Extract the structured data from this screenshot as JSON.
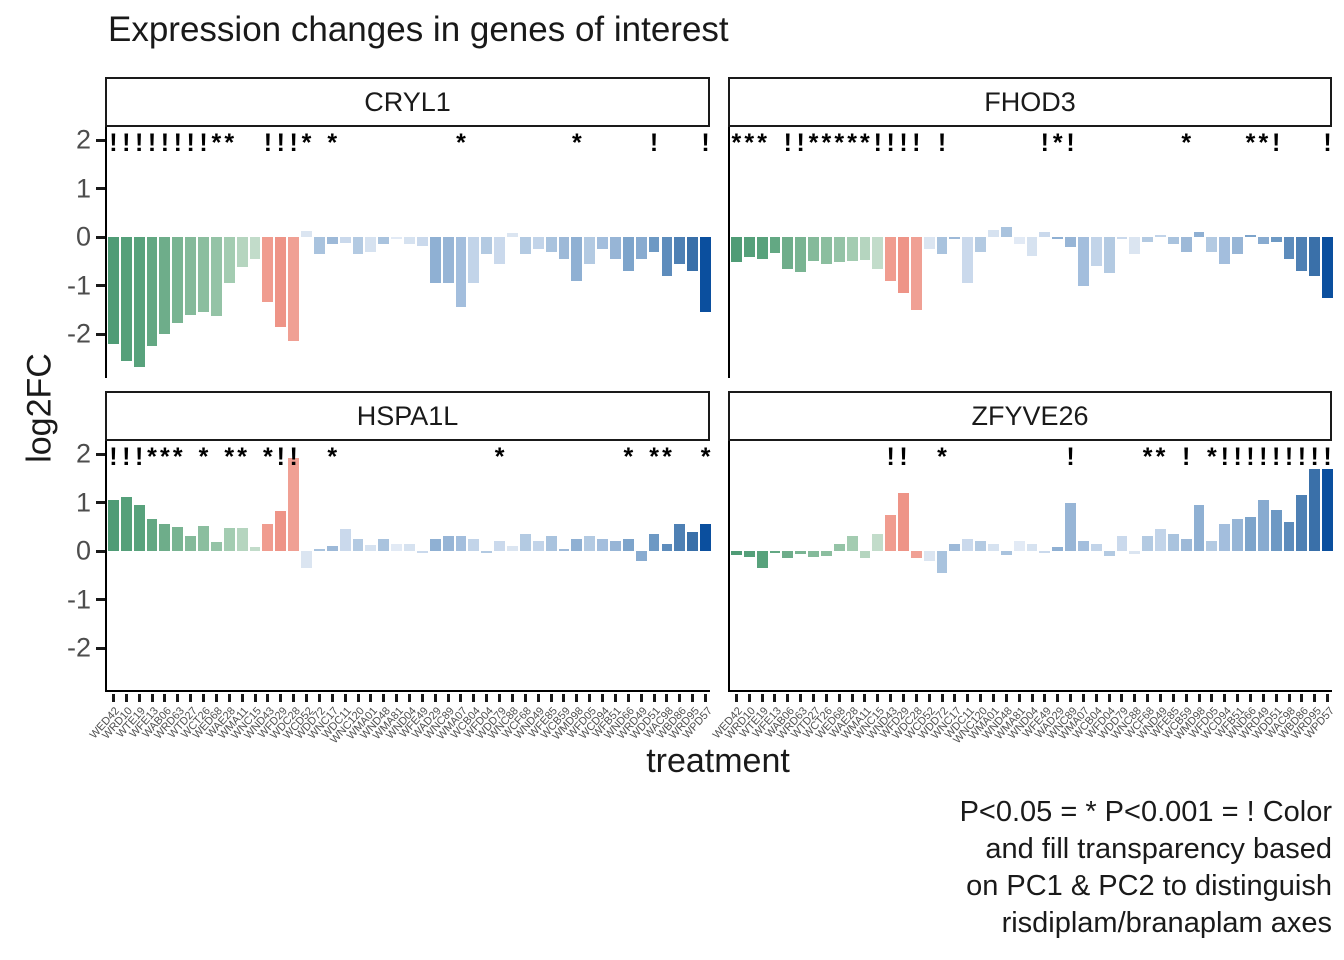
{
  "title": "Expression changes in genes of interest",
  "axes": {
    "ylabel": "log2FC",
    "xlabel": "treatment",
    "y_ticks": [
      2,
      1,
      0,
      -1,
      -2
    ]
  },
  "caption": {
    "lines": [
      "P<0.05 = * P<0.001 = ! Color",
      "and fill transparency based",
      "on PC1 & PC2 to distinguish",
      "risdiplam/branaplam axes"
    ]
  },
  "treatments": [
    "WED42",
    "WRD10",
    "WTE19",
    "WFE13",
    "WAB06",
    "WRD63",
    "WTD27",
    "WCT26",
    "WED68",
    "WAE28",
    "WMA11",
    "WNC15",
    "WND43",
    "WFD29",
    "WDC28",
    "WCD52",
    "WDD72",
    "WNC17",
    "WDC11",
    "WNC120",
    "WMA01",
    "WND48",
    "WMA81",
    "WND04",
    "WFE49",
    "WAD29",
    "WNC89",
    "WMA07",
    "WCB04",
    "WFD04",
    "WDD79",
    "WNC88",
    "WCF68",
    "WND49",
    "WFE85",
    "WCB59",
    "WMD98",
    "WFD05",
    "WCD94",
    "WFB51",
    "WND66",
    "WRD49",
    "WDD51",
    "WAC98",
    "WBD86",
    "WRD95",
    "WPD57"
  ],
  "bar_colors": [
    "#4f9c76",
    "#55a07a",
    "#58a27c",
    "#63a883",
    "#6ead8a",
    "#79b492",
    "#84ba9a",
    "#8bbe9f",
    "#94c3a6",
    "#a3ccb1",
    "#b5d5bf",
    "#c2dcca",
    "#f09c8f",
    "#ee9487",
    "#f0a094",
    "#dbe5f1",
    "#a9c3de",
    "#9db9d8",
    "#cad9ec",
    "#b3cae2",
    "#d6e2f0",
    "#a9c3de",
    "#e2eaf5",
    "#d6e2f0",
    "#cad9ec",
    "#8fb0d3",
    "#97b5d6",
    "#a3bedd",
    "#c2d4e9",
    "#b3cae2",
    "#cad9ec",
    "#dbe5f1",
    "#b3cae2",
    "#c2d4e9",
    "#a9c3de",
    "#9db9d8",
    "#8fb0d3",
    "#b3cae2",
    "#a3bedd",
    "#97b5d6",
    "#7da4cb",
    "#88abd0",
    "#6d99c4",
    "#5d8cbc",
    "#4e80b4",
    "#3a70a9",
    "#0b4f9e"
  ],
  "chart_data": {
    "type": "bar",
    "title": "Expression changes in genes of interest",
    "xlabel": "treatment",
    "ylabel": "log2FC",
    "ylim": [
      -2.9,
      2.3
    ],
    "grid": false,
    "legend_position": "none",
    "sig_legend": {
      "*": "P<0.05",
      "!": "P<0.001"
    },
    "facets": [
      {
        "gene": "CRYL1",
        "values": [
          -2.2,
          -2.55,
          -2.68,
          -2.25,
          -2.0,
          -1.77,
          -1.6,
          -1.55,
          -1.62,
          -0.95,
          -0.62,
          -0.45,
          -1.35,
          -1.85,
          -2.15,
          0.12,
          -0.35,
          -0.15,
          -0.12,
          -0.35,
          -0.3,
          -0.15,
          -0.05,
          -0.15,
          -0.18,
          -0.95,
          -0.95,
          -1.45,
          -0.95,
          -0.35,
          -0.55,
          0.08,
          -0.35,
          -0.25,
          -0.3,
          -0.45,
          -0.9,
          -0.55,
          -0.25,
          -0.45,
          -0.7,
          -0.45,
          -0.3,
          -0.8,
          -0.55,
          -0.7,
          -1.55
        ],
        "sig": [
          "!",
          "!",
          "!",
          "!",
          "!",
          "!",
          "!",
          "!",
          "*",
          "*",
          "",
          "",
          "!",
          "!",
          "!",
          "*",
          "",
          "*",
          "",
          "",
          "",
          "",
          "",
          "",
          "",
          "",
          "",
          "*",
          "",
          "",
          "",
          "",
          "",
          "",
          "",
          "",
          "*",
          "",
          "",
          "",
          "",
          "",
          "!",
          "",
          "",
          "",
          "!"
        ]
      },
      {
        "gene": "FHOD3",
        "values": [
          -0.52,
          -0.42,
          -0.45,
          -0.33,
          -0.65,
          -0.72,
          -0.5,
          -0.55,
          -0.52,
          -0.5,
          -0.48,
          -0.65,
          -0.9,
          -1.15,
          -1.5,
          -0.25,
          -0.35,
          -0.05,
          -0.95,
          -0.3,
          0.15,
          0.2,
          -0.15,
          -0.4,
          0.1,
          -0.05,
          -0.2,
          -1.0,
          -0.6,
          -0.75,
          -0.05,
          -0.35,
          -0.1,
          0.05,
          -0.15,
          -0.3,
          0.1,
          -0.3,
          -0.55,
          -0.35,
          0.05,
          -0.15,
          -0.1,
          -0.45,
          -0.7,
          -0.8,
          -1.25
        ],
        "sig": [
          "*",
          "*",
          "*",
          "",
          "!",
          "!",
          "*",
          "*",
          "*",
          "*",
          "*",
          "!",
          "!",
          "!",
          "!",
          "",
          "!",
          "",
          "",
          "",
          "",
          "",
          "",
          "",
          "!",
          "*",
          "!",
          "",
          "",
          "",
          "",
          "",
          "",
          "",
          "",
          "*",
          "",
          "",
          "",
          "",
          "*",
          "*",
          "!",
          "",
          "",
          "",
          "!"
        ]
      },
      {
        "gene": "HSPA1L",
        "values": [
          1.05,
          1.12,
          0.95,
          0.66,
          0.56,
          0.49,
          0.31,
          0.52,
          0.19,
          0.47,
          0.47,
          0.08,
          0.56,
          0.82,
          1.92,
          -0.35,
          0.05,
          0.1,
          0.45,
          0.25,
          0.12,
          0.25,
          0.15,
          0.15,
          -0.05,
          0.25,
          0.3,
          0.3,
          0.25,
          -0.05,
          0.2,
          0.1,
          0.35,
          0.2,
          0.3,
          0.05,
          0.25,
          0.3,
          0.25,
          0.2,
          0.25,
          -0.2,
          0.35,
          0.15,
          0.55,
          0.4,
          0.55
        ],
        "sig": [
          "!",
          "!",
          "!",
          "*",
          "*",
          "*",
          "",
          "*",
          "",
          "*",
          "*",
          "",
          "*",
          "!",
          "!",
          "",
          "",
          "*",
          "",
          "",
          "",
          "",
          "",
          "",
          "",
          "",
          "",
          "",
          "",
          "",
          "*",
          "",
          "",
          "",
          "",
          "",
          "",
          "",
          "",
          "",
          "*",
          "",
          "*",
          "*",
          "",
          "",
          "*"
        ]
      },
      {
        "gene": "ZFYVE26",
        "values": [
          -0.08,
          -0.12,
          -0.35,
          -0.05,
          -0.15,
          -0.06,
          -0.12,
          -0.1,
          0.15,
          0.3,
          -0.15,
          0.35,
          0.75,
          1.2,
          -0.15,
          -0.2,
          -0.45,
          0.15,
          0.25,
          0.2,
          0.15,
          -0.08,
          0.2,
          0.15,
          -0.05,
          0.08,
          1.0,
          0.2,
          0.15,
          -0.1,
          0.3,
          -0.06,
          0.3,
          0.45,
          0.35,
          0.25,
          0.95,
          0.2,
          0.55,
          0.65,
          0.7,
          1.05,
          0.85,
          0.6,
          1.15,
          1.7,
          1.7
        ],
        "sig": [
          "",
          "",
          "",
          "",
          "",
          "",
          "",
          "",
          "",
          "",
          "",
          "",
          "!",
          "!",
          "",
          "",
          "*",
          "",
          "",
          "",
          "",
          "",
          "",
          "",
          "",
          "",
          "!",
          "",
          "",
          "",
          "",
          "",
          "*",
          "*",
          "",
          "!",
          "",
          "*",
          "!",
          "!",
          "!",
          "!",
          "!",
          "!",
          "!",
          "!",
          "!"
        ]
      }
    ]
  }
}
